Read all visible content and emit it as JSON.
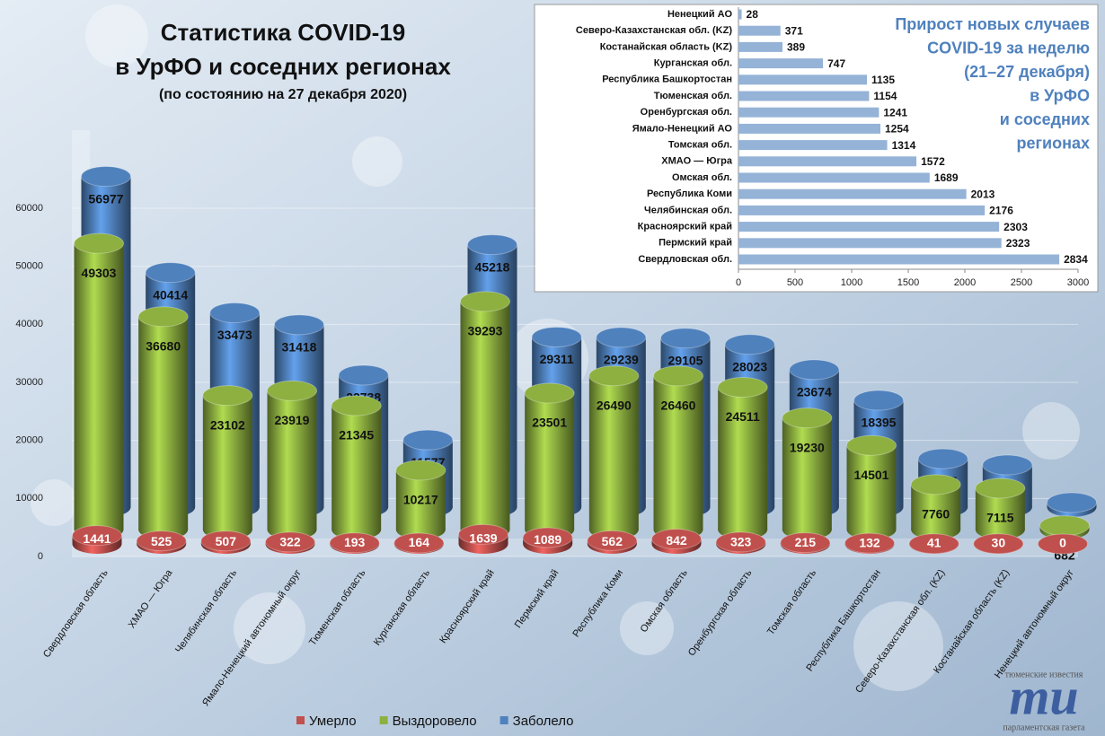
{
  "chart_data": [
    {
      "type": "bar",
      "title": [
        "Статистика COVID-19",
        "в УрФО и соседних регионах"
      ],
      "subtitle": "(по состоянию на 27 декабря 2020)",
      "categories": [
        "Свердловская область",
        "ХМАО — Югра",
        "Челябинская область",
        "Ямало-Ненецкий автономный округ",
        "Тюменская область",
        "Курганская область",
        "Красноярский край",
        "Пермский край",
        "Республика Коми",
        "Омская область",
        "Оренбургская область",
        "Томская область",
        "Республика Башкортостан",
        "Северо-Казахстанская обл. (KZ)",
        "Костанайская область (KZ)",
        "Ненецкий автономный округ"
      ],
      "series": [
        {
          "name": "Умерло",
          "color": "#c0504d",
          "values": [
            1441,
            525,
            507,
            322,
            193,
            164,
            1639,
            1089,
            562,
            842,
            323,
            215,
            132,
            41,
            30,
            0
          ]
        },
        {
          "name": "Выздоровело",
          "color": "#8db040",
          "values": [
            49303,
            36680,
            23102,
            23919,
            21345,
            10217,
            39293,
            23501,
            26490,
            26460,
            24511,
            19230,
            14501,
            7760,
            7115,
            682
          ]
        },
        {
          "name": "Заболело",
          "color": "#4f81bd",
          "values": [
            56977,
            40414,
            33473,
            31418,
            22738,
            11577,
            45218,
            29311,
            29239,
            29105,
            28023,
            23674,
            18395,
            8337,
            7264,
            775
          ]
        }
      ],
      "ylim": [
        0,
        60000
      ],
      "yticks": [
        0,
        10000,
        20000,
        30000,
        40000,
        50000,
        60000
      ],
      "grid": true,
      "legend": "bottom"
    },
    {
      "type": "barh",
      "title": [
        "Прирост новых случаев",
        "COVID-19 за неделю",
        "(21–27 декабря)",
        "в УрФО",
        "и соседних",
        "регионах"
      ],
      "categories": [
        "Ненецкий АО",
        "Северо-Казахстанская обл. (KZ)",
        "Костанайская область (KZ)",
        "Курганская обл.",
        "Республика Башкортостан",
        "Тюменская обл.",
        "Оренбургская обл.",
        "Ямало-Ненецкий АО",
        "Томская обл.",
        "ХМАО — Югра",
        "Омская обл.",
        "Республика Коми",
        "Челябинская обл.",
        "Красноярский край",
        "Пермский край",
        "Свердловская обл."
      ],
      "values": [
        28,
        371,
        389,
        747,
        1135,
        1154,
        1241,
        1254,
        1314,
        1572,
        1689,
        2013,
        2176,
        2303,
        2323,
        2834
      ],
      "color": "#95b3d7",
      "xlim": [
        0,
        3000
      ],
      "xticks": [
        0,
        500,
        1000,
        1500,
        2000,
        2500,
        3000
      ]
    }
  ],
  "logo": {
    "top": "тюменские известия",
    "mark": "ти",
    "bottom": "парламентская газета"
  }
}
